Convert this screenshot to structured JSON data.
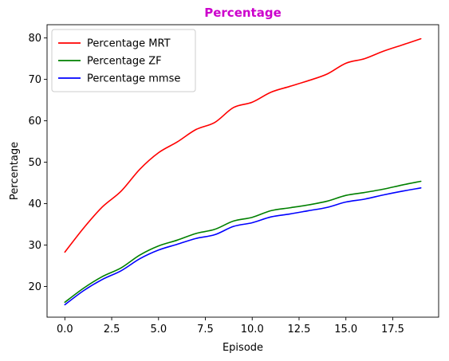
{
  "chart_data": {
    "type": "line",
    "title": "Percentage",
    "title_color": "#cc00cc",
    "xlabel": "Episode",
    "ylabel": "Percentage",
    "xlim": [
      -0.95,
      19.95
    ],
    "ylim": [
      12.6,
      83.2
    ],
    "xticks": [
      0,
      2.5,
      5,
      7.5,
      10,
      12.5,
      15,
      17.5
    ],
    "xtick_labels": [
      "0.0",
      "2.5",
      "5.0",
      "7.5",
      "10.0",
      "12.5",
      "15.0",
      "17.5"
    ],
    "yticks": [
      20,
      30,
      40,
      50,
      60,
      70,
      80
    ],
    "ytick_labels": [
      "20",
      "30",
      "40",
      "50",
      "60",
      "70",
      "80"
    ],
    "grid": false,
    "legend_position": "top-left",
    "x": [
      0,
      1,
      2,
      3,
      4,
      5,
      6,
      7,
      8,
      9,
      10,
      11,
      12,
      13,
      14,
      15,
      16,
      17,
      18,
      19
    ],
    "series": [
      {
        "name": "Percentage MRT",
        "color": "#ff0000",
        "values": [
          28.3,
          34.1,
          39.2,
          43.0,
          48.3,
          52.3,
          54.9,
          57.9,
          59.6,
          63.2,
          64.5,
          66.9,
          68.3,
          69.7,
          71.3,
          73.9,
          75.0,
          76.8,
          78.3,
          79.8
        ]
      },
      {
        "name": "Percentage ZF",
        "color": "#008000",
        "values": [
          16.2,
          19.6,
          22.4,
          24.5,
          27.6,
          29.8,
          31.2,
          32.8,
          33.8,
          35.8,
          36.7,
          38.3,
          39.0,
          39.7,
          40.6,
          42.0,
          42.7,
          43.5,
          44.5,
          45.4
        ]
      },
      {
        "name": "Percentage mmse",
        "color": "#0000ff",
        "values": [
          15.6,
          19.0,
          21.7,
          23.8,
          26.7,
          28.8,
          30.2,
          31.6,
          32.5,
          34.5,
          35.4,
          36.8,
          37.5,
          38.3,
          39.1,
          40.4,
          41.1,
          42.1,
          43.0,
          43.8
        ]
      }
    ]
  }
}
